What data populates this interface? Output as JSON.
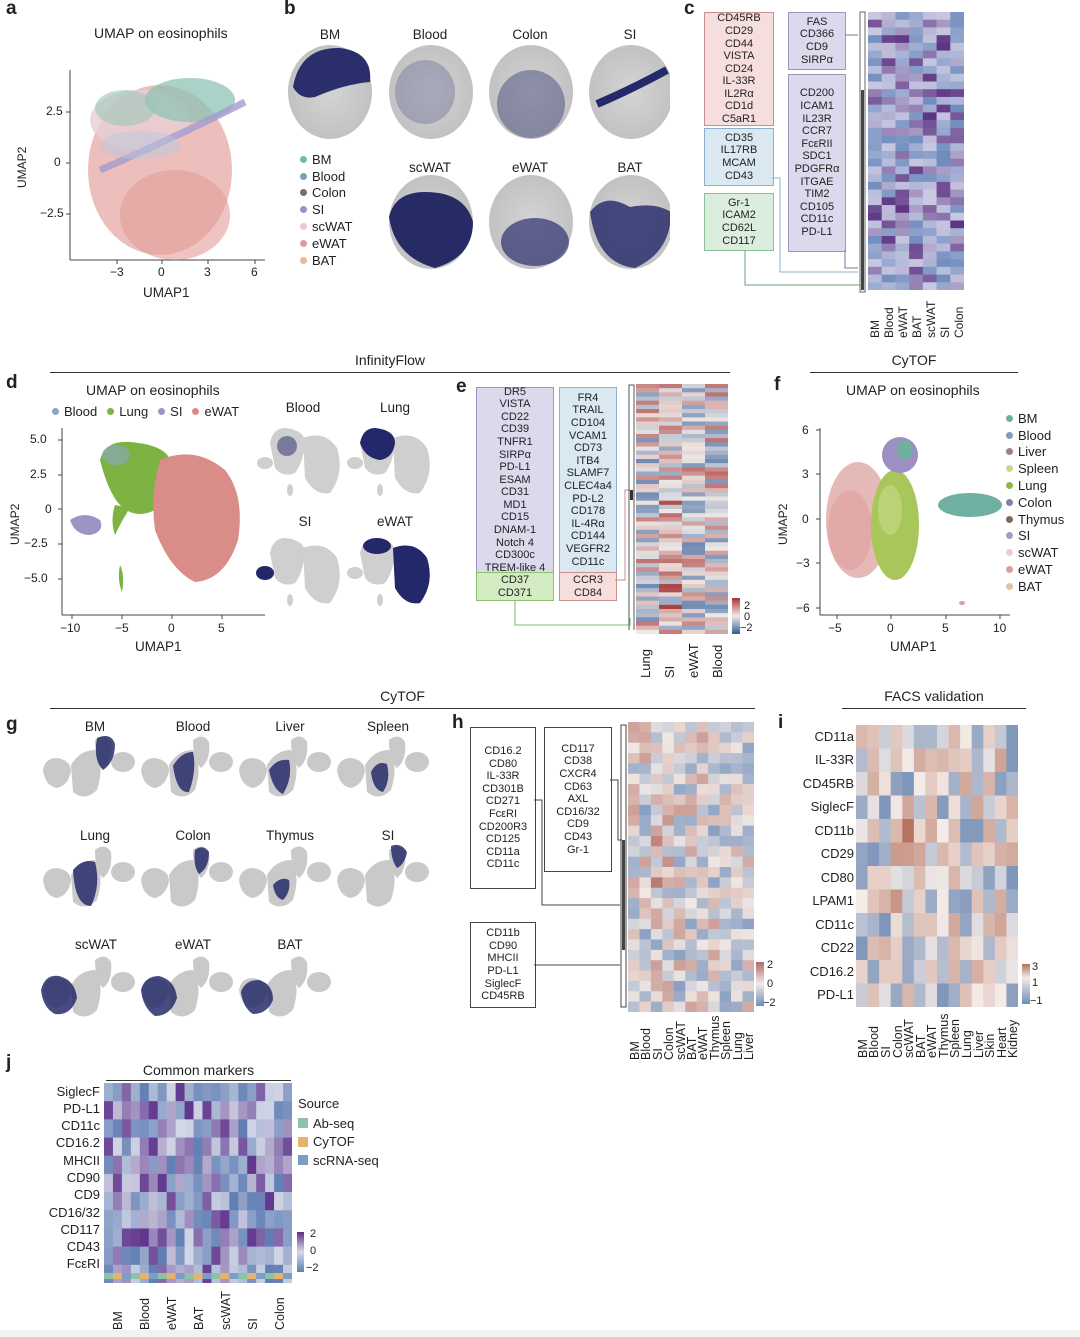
{
  "panel_labels": [
    "a",
    "b",
    "c",
    "d",
    "e",
    "f",
    "g",
    "h",
    "i",
    "j"
  ],
  "panel_a": {
    "title": "UMAP on eosinophils",
    "xlabel": "UMAP1",
    "ylabel": "UMAP2",
    "xticks": [
      "−3",
      "0",
      "3",
      "6"
    ],
    "yticks": [
      "2.5",
      "0",
      "−2.5"
    ],
    "legend": [
      {
        "name": "BM",
        "color": "#7ab8a6"
      },
      {
        "name": "Blood",
        "color": "#7c9fbe"
      },
      {
        "name": "Colon",
        "color": "#6f6f7a"
      },
      {
        "name": "SI",
        "color": "#9b92c7"
      },
      {
        "name": "scWAT",
        "color": "#e8c9cf"
      },
      {
        "name": "eWAT",
        "color": "#e19a9a"
      },
      {
        "name": "BAT",
        "color": "#e9b9a0"
      }
    ]
  },
  "panel_b": {
    "tissues": [
      "BM",
      "Blood",
      "Colon",
      "SI",
      "scWAT",
      "eWAT",
      "BAT"
    ]
  },
  "panel_c": {
    "group_pink": [
      "CD45RB",
      "CD29",
      "CD44",
      "VISTA",
      "CD24",
      "IL-33R",
      "IL2Rα",
      "CD1d",
      "C5aR1"
    ],
    "group_blue": [
      "CD35",
      "IL17RB",
      "MCAM",
      "CD43"
    ],
    "group_green": [
      "Gr-1",
      "ICAM2",
      "CD62L",
      "CD117"
    ],
    "group_lav1": [
      "FAS",
      "CD366",
      "CD9",
      "SIRPα"
    ],
    "group_lav2": [
      "CD200",
      "ICAM1",
      "IL23R",
      "CCR7",
      "FcεRII",
      "SDC1",
      "PDGFRα",
      "ITGAE",
      "TIM2",
      "CD105",
      "CD11c",
      "PD-L1"
    ],
    "columns": [
      "BM",
      "Blood",
      "eWAT",
      "BAT",
      "scWAT",
      "SI",
      "Colon"
    ]
  },
  "section_headers": {
    "infinityflow": "InfinityFlow",
    "cytof_f": "CyTOF",
    "cytof_g": "CyTOF",
    "facs": "FACS validation"
  },
  "panel_d": {
    "title": "UMAP on eosinophils",
    "legend": [
      {
        "name": "Blood",
        "color": "#8aa6c8"
      },
      {
        "name": "Lung",
        "color": "#7cb342"
      },
      {
        "name": "SI",
        "color": "#9a95c5"
      },
      {
        "name": "eWAT",
        "color": "#d98c88"
      }
    ],
    "xlabel": "UMAP1",
    "ylabel": "UMAP2",
    "xticks": [
      "−10",
      "−5",
      "0",
      "5"
    ],
    "yticks": [
      "5.0",
      "2.5",
      "0",
      "−2.5",
      "−5.0"
    ],
    "small_titles": [
      "Blood",
      "Lung",
      "SI",
      "eWAT"
    ]
  },
  "panel_e": {
    "group_lav": [
      "DR5",
      "VISTA",
      "CD22",
      "CD39",
      "TNFR1",
      "SIRPα",
      "PD-L1",
      "ESAM",
      "CD31",
      "MD1",
      "CD15",
      "DNAM-1",
      "Notch 4",
      "CD300c",
      "TREM-like 4"
    ],
    "group_green": [
      "CD37",
      "CD371"
    ],
    "group_blue": [
      "FR4",
      "TRAIL",
      "CD104",
      "VCAM1",
      "CD73",
      "ITB4",
      "SLAMF7",
      "CLEC4a4",
      "PD-L2",
      "CD178",
      "IL-4Rα",
      "CD144",
      "VEGFR2",
      "CD11c"
    ],
    "group_pink": [
      "CCR3",
      "CD84"
    ],
    "columns": [
      "Lung",
      "SI",
      "eWAT",
      "Blood"
    ],
    "scale": [
      "2",
      "0",
      "−2"
    ]
  },
  "panel_f": {
    "title": "UMAP on eosinophils",
    "xlabel": "UMAP1",
    "ylabel": "UMAP2",
    "xticks": [
      "−5",
      "0",
      "5",
      "10"
    ],
    "yticks": [
      "6",
      "3",
      "0",
      "−3",
      "−6"
    ],
    "legend": [
      {
        "name": "BM",
        "color": "#6fb0a3"
      },
      {
        "name": "Blood",
        "color": "#7c9fbe"
      },
      {
        "name": "Liver",
        "color": "#9a7f8f"
      },
      {
        "name": "Spleen",
        "color": "#c9d98a"
      },
      {
        "name": "Lung",
        "color": "#8ab84a"
      },
      {
        "name": "Colon",
        "color": "#8e79b0"
      },
      {
        "name": "Thymus",
        "color": "#7d6b62"
      },
      {
        "name": "SI",
        "color": "#a79cc8"
      },
      {
        "name": "scWAT",
        "color": "#e8cdd1"
      },
      {
        "name": "eWAT",
        "color": "#df9c98"
      },
      {
        "name": "BAT",
        "color": "#e8c29a"
      }
    ]
  },
  "panel_g": {
    "tissues": [
      "BM",
      "Blood",
      "Liver",
      "Spleen",
      "Lung",
      "Colon",
      "Thymus",
      "SI",
      "scWAT",
      "eWAT",
      "BAT"
    ]
  },
  "panel_h": {
    "group1": [
      "CD16.2",
      "CD80",
      "IL-33R",
      "CD301B",
      "CD271",
      "FcεRI",
      "CD200R3",
      "CD125",
      "CD11a",
      "CD11c"
    ],
    "group2": [
      "CD117",
      "CD38",
      "CXCR4",
      "CD63",
      "AXL",
      "CD16/32",
      "CD9",
      "CD43",
      "Gr-1"
    ],
    "group3": [
      "CD11b",
      "CD90",
      "MHCII",
      "PD-L1",
      "SiglecF",
      "CD45RB"
    ],
    "columns": [
      "BM",
      "Blood",
      "SI",
      "Colon",
      "scWAT",
      "BAT",
      "eWAT",
      "Thymus",
      "Spleen",
      "Lung",
      "Liver"
    ],
    "scale": [
      "2",
      "0",
      "−2"
    ]
  },
  "panel_i": {
    "rows": [
      "CD11a",
      "IL-33R",
      "CD45RB",
      "SiglecF",
      "CD11b",
      "CD29",
      "CD80",
      "LPAM1",
      "CD11c",
      "CD22",
      "CD16.2",
      "PD-L1"
    ],
    "columns": [
      "BM",
      "Blood",
      "SI",
      "Colon",
      "scWAT",
      "BAT",
      "eWAT",
      "Thymus",
      "Spleen",
      "Lung",
      "Liver",
      "Skin",
      "Heart",
      "Kidney"
    ],
    "scale": [
      "3",
      "1",
      "−1"
    ]
  },
  "panel_j": {
    "title": "Common markers",
    "rows": [
      "SiglecF",
      "PD-L1",
      "CD11c",
      "CD16.2",
      "MHCII",
      "CD90",
      "CD9",
      "CD16/32",
      "CD117",
      "CD43",
      "FcεRI"
    ],
    "columns": [
      "BM",
      "Blood",
      "eWAT",
      "BAT",
      "scWAT",
      "SI",
      "Colon"
    ],
    "source_title": "Source",
    "sources": [
      {
        "name": "Ab-seq",
        "color": "#8fc1a9"
      },
      {
        "name": "CyTOF",
        "color": "#e6b36b"
      },
      {
        "name": "scRNA-seq",
        "color": "#7d9cc7"
      }
    ],
    "scale": [
      "2",
      "0",
      "−2"
    ]
  }
}
